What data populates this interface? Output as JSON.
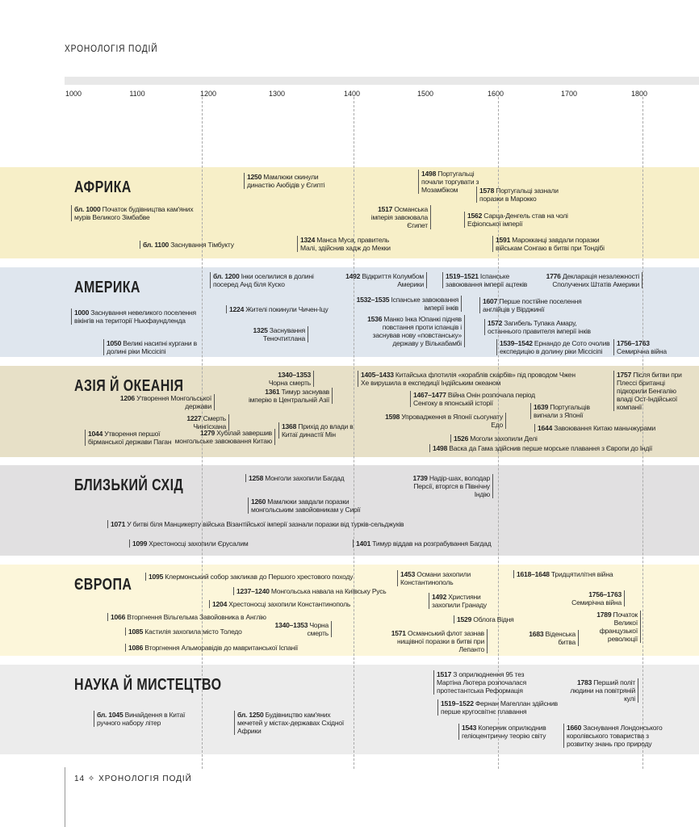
{
  "header": {
    "title": "ХРОНОЛОГІЯ ПОДІЙ"
  },
  "axis": [
    1000,
    1100,
    1200,
    1300,
    1400,
    1500,
    1600,
    1700,
    1800
  ],
  "sections": [
    {
      "title": "АФРИКА",
      "events": [
        {
          "year": "1250",
          "text": "Мамлюки скинули династію Аюбідів у Єгипті"
        },
        {
          "year": "1498",
          "text": "Португальці почали торгувати з Мозамбіком"
        },
        {
          "year": "1578",
          "text": "Португальці зазнали поразки в Марокко"
        },
        {
          "year": "бл. 1000",
          "text": "Початок будівництва кам'яних мурів Великого Зімбабве"
        },
        {
          "year": "1517",
          "text": "Османська імперія завоювала Єгипет"
        },
        {
          "year": "1562",
          "text": "Сарца-Денгель став на чолі Ефіопської імперії"
        },
        {
          "year": "бл. 1100",
          "text": "Заснування Тімбукту"
        },
        {
          "year": "1324",
          "text": "Манса Муса, правитель Малі, здійснив хадж до Мекки"
        },
        {
          "year": "1591",
          "text": "Марокканці завдали поразки військам Сонгаю в битві при Тондібі"
        }
      ]
    },
    {
      "title": "АМЕРИКА",
      "events": [
        {
          "year": "бл. 1200",
          "text": "Інки оселилися в долині посеред Анд біля Куско"
        },
        {
          "year": "1492",
          "text": "Відкриття Колумбом Америки"
        },
        {
          "year": "1519–1521",
          "text": "Іспанське завоювання імперії ацтеків"
        },
        {
          "year": "1776",
          "text": "Декларація незалежності Сполучених Штатів Америки"
        },
        {
          "year": "1000",
          "text": "Заснування невеликого поселення вікінгів на території Ньюфаундленда"
        },
        {
          "year": "1224",
          "text": "Жителі покинули Чичен-Іцу"
        },
        {
          "year": "1532–1535",
          "text": "Іспанське завоювання імперії інків"
        },
        {
          "year": "1607",
          "text": "Перше постійне поселення англійців у Вірджинії"
        },
        {
          "year": "1325",
          "text": "Заснування Теночтитлана"
        },
        {
          "year": "1536",
          "text": "Манко Інка Юпанкі підняв повстання проти іспанців і заснував нову «повстанську» державу у Вількабамбі"
        },
        {
          "year": "1572",
          "text": "Загибель Тупака Амару, останнього правителя імперії інків"
        },
        {
          "year": "1050",
          "text": "Великі насипні кургани в долині ріки Міссісіпі"
        },
        {
          "year": "1539–1542",
          "text": "Ернандо де Сото очолив експедицію в долину ріки Міссісіпі"
        },
        {
          "year": "1756–1763",
          "text": "Семирічна війна"
        }
      ]
    },
    {
      "title": "АЗІЯ Й ОКЕАНІЯ",
      "events": [
        {
          "year": "1340–1353",
          "text": "Чорна смерть"
        },
        {
          "year": "1405–1433",
          "text": "Китайська флотилія «кораблів скарбів» під проводом Чжен Хе вирушила в експедиції Індійським океаном"
        },
        {
          "year": "1757",
          "text": "Після битви при Плессі британці підкорили Бенгалію владі Ост-Індійської компанії"
        },
        {
          "year": "1361",
          "text": "Тимур заснував імперію в Центральній Азії"
        },
        {
          "year": "1206",
          "text": "Утворення Монгольської держави"
        },
        {
          "year": "1467–1477",
          "text": "Війна Онін розпочала період Сенгоку в японській історії"
        },
        {
          "year": "1639",
          "text": "Португальців вигнали з Японії"
        },
        {
          "year": "1227",
          "text": "Смерть Чингісхана"
        },
        {
          "year": "1598",
          "text": "Упровадження в Японії сьогунату Едо"
        },
        {
          "year": "1368",
          "text": "Прихід до влади в Китаї династії Мін"
        },
        {
          "year": "1279",
          "text": "Хубілай завершив монгольське завоювання Китаю"
        },
        {
          "year": "1044",
          "text": "Утворення першої бірманської держави Паган"
        },
        {
          "year": "1644",
          "text": "Завоювання Китаю маньчжурами"
        },
        {
          "year": "1526",
          "text": "Моголи захопили Делі"
        },
        {
          "year": "1498",
          "text": "Васка да Гама здійснив перше морське плавання з Європи до Індії"
        }
      ]
    },
    {
      "title": "БЛИЗЬКИЙ СХІД",
      "events": [
        {
          "year": "1258",
          "text": "Монголи захопили Багдад"
        },
        {
          "year": "1739",
          "text": "Надір-шах, володар Персії, вторгся в Північну Індію"
        },
        {
          "year": "1260",
          "text": "Мамлюки завдали поразки монгольським завойовникам у Сирії"
        },
        {
          "year": "1071",
          "text": "У битві біля Манцикерту війська Візантійської імперії зазнали поразки від турків-сельджуків"
        },
        {
          "year": "1099",
          "text": "Хрестоносці захопили Єрусалим"
        },
        {
          "year": "1401",
          "text": "Тимур віддав на розграбування Багдад"
        }
      ]
    },
    {
      "title": "ЄВРОПА",
      "events": [
        {
          "year": "1095",
          "text": "Клермонський собор закликав до Першого хрестового походу"
        },
        {
          "year": "1453",
          "text": "Османи захопили Константинополь"
        },
        {
          "year": "1618–1648",
          "text": "Тридцятилітня війна"
        },
        {
          "year": "1237–1240",
          "text": "Монгольська навала на Київську Русь"
        },
        {
          "year": "1492",
          "text": "Християни захопили Гранаду"
        },
        {
          "year": "1756–1763",
          "text": "Семирічна війна"
        },
        {
          "year": "1204",
          "text": "Хрестоносці захопили Константинополь"
        },
        {
          "year": "1789",
          "text": "Початок Великої французької революції"
        },
        {
          "year": "1066",
          "text": "Вторгнення Вільгельма Завойовника в Англію"
        },
        {
          "year": "1529",
          "text": "Облога Відня"
        },
        {
          "year": "1340–1353",
          "text": "Чорна смерть"
        },
        {
          "year": "1085",
          "text": "Кастилія захопила місто Толедо"
        },
        {
          "year": "1571",
          "text": "Османський флот зазнав нищівної поразки в битві при Лепанто"
        },
        {
          "year": "1683",
          "text": "Віденська битва"
        },
        {
          "year": "1086",
          "text": "Вторгнення Альморавідів до мавританської Іспанії"
        }
      ]
    },
    {
      "title": "НАУКА Й МИСТЕЦТВО",
      "events": [
        {
          "year": "1517",
          "text": "З оприлюднення 95 тез Мартіна Лютера розпочалася протестантська Реформація"
        },
        {
          "year": "1783",
          "text": "Перший політ людини на повітряній кулі"
        },
        {
          "year": "бл. 1045",
          "text": "Винайдення в Китаї ручного набору літер"
        },
        {
          "year": "бл. 1250",
          "text": "Будівництво кам'яних мечетей у містах-державах Східної Африки"
        },
        {
          "year": "1519–1522",
          "text": "Фернан Магеллан здійснив перше кругосвітнє плавання"
        },
        {
          "year": "1543",
          "text": "Коперник оприлюднив геліоцентричну теорію світу"
        },
        {
          "year": "1660",
          "text": "Заснування Лондонського королівського товариства з розвитку знань про природу"
        }
      ]
    }
  ],
  "footer": {
    "page": "14",
    "title": "ХРОНОЛОГІЯ ПОДІЙ"
  }
}
